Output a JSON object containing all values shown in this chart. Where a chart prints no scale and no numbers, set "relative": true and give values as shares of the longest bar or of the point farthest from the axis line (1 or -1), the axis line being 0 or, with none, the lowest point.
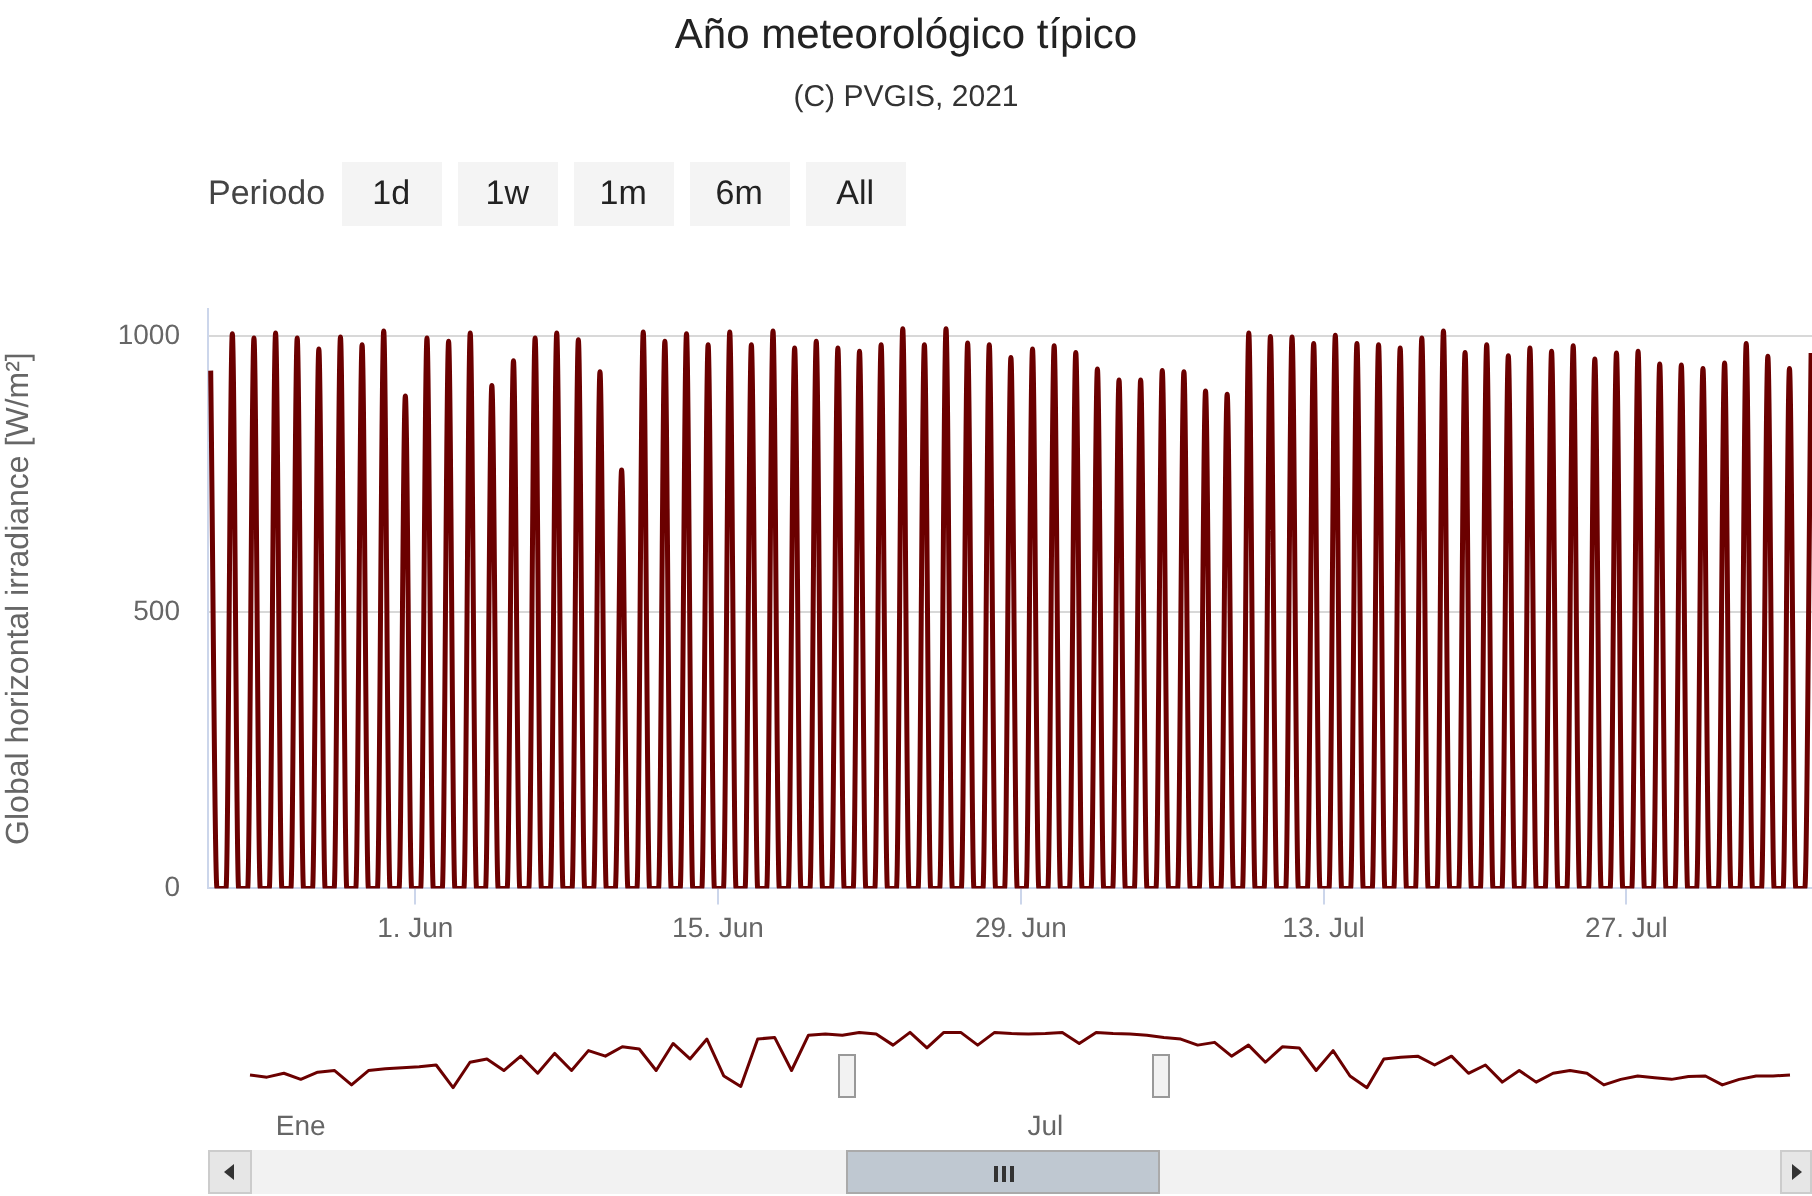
{
  "chart_data": [
    {
      "type": "line",
      "title": "Año meteorológico típico",
      "subtitle": "(C) PVGIS, 2021",
      "ylabel": "Global horizontal irradiance [W/m²]",
      "annotations": [
        "Periodo",
        "1d",
        "1w",
        "1m",
        "6m",
        "All"
      ],
      "color": "#6b0000",
      "grid": "y",
      "xlim": [
        "--05-22T10:00",
        "--08-04T14:00"
      ],
      "ylim": [
        0,
        1050
      ],
      "yticks": [
        0,
        500,
        1000
      ],
      "xticks": [
        {
          "value": "--06-01",
          "label": "1. Jun"
        },
        {
          "value": "--06-15",
          "label": "15. Jun"
        },
        {
          "value": "--06-29",
          "label": "29. Jun"
        },
        {
          "value": "--07-13",
          "label": "13. Jul"
        },
        {
          "value": "--07-27",
          "label": "27. Jul"
        }
      ],
      "x": [
        "--05-22T13:00",
        "--05-22T20:00",
        "--05-23T06:00",
        "--05-23T13:00",
        "--05-23T20:00",
        "--05-24T06:00",
        "--05-24T13:00",
        "--05-24T20:00",
        "--05-25T06:00",
        "--05-25T13:00",
        "--05-25T20:00",
        "--05-26T06:00",
        "--05-26T13:00",
        "--05-26T20:00",
        "--05-27T06:00",
        "--05-27T13:00",
        "--05-27T20:00",
        "--05-28T06:00",
        "--05-28T13:00",
        "--05-28T20:00",
        "--05-29T06:00",
        "--05-29T13:00",
        "--05-29T20:00",
        "--05-30T06:00",
        "--05-30T13:00",
        "--05-30T20:00",
        "--05-31T06:00",
        "--05-31T13:00",
        "--05-31T20:00",
        "--06-01T06:00",
        "--06-01T13:00",
        "--06-01T20:00",
        "--06-02T06:00",
        "--06-02T13:00",
        "--06-02T20:00",
        "--06-03T06:00",
        "--06-03T13:00",
        "--06-03T20:00",
        "--06-04T06:00",
        "--06-04T13:00",
        "--06-04T20:00",
        "--06-05T06:00",
        "--06-05T13:00",
        "--06-05T20:00",
        "--06-06T06:00",
        "--06-06T13:00",
        "--06-06T20:00",
        "--06-07T06:00",
        "--06-07T13:00",
        "--06-07T20:00",
        "--06-08T06:00",
        "--06-08T13:00",
        "--06-08T20:00",
        "--06-09T06:00",
        "--06-09T13:00",
        "--06-09T20:00",
        "--06-10T06:00",
        "--06-10T13:00",
        "--06-10T20:00",
        "--06-11T06:00",
        "--06-11T13:00",
        "--06-11T20:00",
        "--06-12T06:00",
        "--06-12T13:00",
        "--06-12T20:00",
        "--06-13T06:00",
        "--06-13T13:00",
        "--06-13T20:00",
        "--06-14T06:00",
        "--06-14T13:00",
        "--06-14T20:00",
        "--06-15T06:00",
        "--06-15T13:00",
        "--06-15T20:00",
        "--06-16T06:00",
        "--06-16T13:00",
        "--06-16T20:00",
        "--06-17T06:00",
        "--06-17T13:00",
        "--06-17T20:00",
        "--06-18T06:00",
        "--06-18T13:00",
        "--06-18T20:00",
        "--06-19T06:00",
        "--06-19T13:00",
        "--06-19T20:00",
        "--06-20T06:00",
        "--06-20T13:00",
        "--06-20T20:00",
        "--06-21T06:00",
        "--06-21T13:00",
        "--06-21T20:00",
        "--06-22T06:00",
        "--06-22T13:00",
        "--06-22T20:00",
        "--06-23T06:00",
        "--06-23T13:00",
        "--06-23T20:00",
        "--06-24T06:00",
        "--06-24T13:00",
        "--06-24T20:00",
        "--06-25T06:00",
        "--06-25T13:00",
        "--06-25T20:00",
        "--06-26T06:00",
        "--06-26T13:00",
        "--06-26T20:00",
        "--06-27T06:00",
        "--06-27T13:00",
        "--06-27T20:00",
        "--06-28T06:00",
        "--06-28T13:00",
        "--06-28T20:00",
        "--06-29T06:00",
        "--06-29T13:00",
        "--06-29T20:00",
        "--06-30T06:00",
        "--06-30T13:00",
        "--06-30T20:00",
        "--07-01T06:00",
        "--07-01T13:00",
        "--07-01T20:00",
        "--07-02T06:00",
        "--07-02T13:00",
        "--07-02T20:00",
        "--07-03T06:00",
        "--07-03T13:00",
        "--07-03T20:00",
        "--07-04T06:00",
        "--07-04T13:00",
        "--07-04T20:00",
        "--07-05T06:00",
        "--07-05T13:00",
        "--07-05T20:00",
        "--07-06T06:00",
        "--07-06T13:00",
        "--07-06T20:00",
        "--07-07T06:00",
        "--07-07T13:00",
        "--07-07T20:00",
        "--07-08T06:00",
        "--07-08T13:00",
        "--07-08T20:00",
        "--07-09T06:00",
        "--07-09T13:00",
        "--07-09T20:00",
        "--07-10T06:00",
        "--07-10T13:00",
        "--07-10T20:00",
        "--07-11T06:00",
        "--07-11T13:00",
        "--07-11T20:00",
        "--07-12T06:00",
        "--07-12T13:00",
        "--07-12T20:00",
        "--07-13T06:00",
        "--07-13T13:00",
        "--07-13T20:00",
        "--07-14T06:00",
        "--07-14T13:00",
        "--07-14T20:00",
        "--07-15T06:00",
        "--07-15T13:00",
        "--07-15T20:00",
        "--07-16T06:00",
        "--07-16T13:00",
        "--07-16T20:00",
        "--07-17T06:00",
        "--07-17T13:00",
        "--07-17T20:00",
        "--07-18T06:00",
        "--07-18T13:00",
        "--07-18T20:00",
        "--07-19T06:00",
        "--07-19T13:00",
        "--07-19T20:00",
        "--07-20T06:00",
        "--07-20T13:00",
        "--07-20T20:00",
        "--07-21T06:00",
        "--07-21T13:00",
        "--07-21T20:00",
        "--07-22T06:00",
        "--07-22T13:00",
        "--07-22T20:00",
        "--07-23T06:00",
        "--07-23T13:00",
        "--07-23T20:00",
        "--07-24T06:00",
        "--07-24T13:00",
        "--07-24T20:00",
        "--07-25T06:00",
        "--07-25T13:00",
        "--07-25T20:00",
        "--07-26T06:00",
        "--07-26T13:00",
        "--07-26T20:00",
        "--07-27T06:00",
        "--07-27T13:00",
        "--07-27T20:00",
        "--07-28T06:00",
        "--07-28T13:00",
        "--07-28T20:00",
        "--07-29T06:00",
        "--07-29T13:00",
        "--07-29T20:00",
        "--07-30T06:00",
        "--07-30T13:00",
        "--07-30T20:00",
        "--07-31T06:00",
        "--07-31T13:00",
        "--07-31T20:00",
        "--08-01T06:00",
        "--08-01T13:00",
        "--08-01T20:00",
        "--08-02T06:00",
        "--08-02T13:00",
        "--08-02T20:00",
        "--08-03T06:00",
        "--08-03T13:00",
        "--08-03T20:00",
        "--08-04T06:00",
        "--08-04T13:00"
      ],
      "values": [
        938,
        0,
        0,
        1005,
        0,
        0,
        997,
        0,
        0,
        1006,
        0,
        0,
        997,
        0,
        0,
        977,
        0,
        0,
        999,
        0,
        0,
        985,
        0,
        0,
        1010,
        0,
        0,
        892,
        0,
        0,
        997,
        0,
        0,
        991,
        0,
        0,
        1006,
        0,
        0,
        911,
        0,
        0,
        956,
        0,
        0,
        997,
        0,
        0,
        1006,
        0,
        0,
        994,
        0,
        0,
        936,
        0,
        0,
        758,
        0,
        0,
        1008,
        0,
        0,
        991,
        0,
        0,
        1005,
        0,
        0,
        985,
        0,
        0,
        1008,
        0,
        0,
        985,
        0,
        0,
        1010,
        0,
        0,
        979,
        0,
        0,
        991,
        0,
        0,
        979,
        0,
        0,
        973,
        0,
        0,
        985,
        0,
        0,
        1014,
        0,
        0,
        985,
        0,
        0,
        1014,
        0,
        0,
        988,
        0,
        0,
        985,
        0,
        0,
        962,
        0,
        0,
        977,
        0,
        0,
        983,
        0,
        0,
        971,
        0,
        0,
        941,
        0,
        0,
        921,
        0,
        0,
        921,
        0,
        0,
        938,
        0,
        0,
        936,
        0,
        0,
        901,
        0,
        0,
        895,
        0,
        0,
        1006,
        0,
        0,
        1000,
        0,
        0,
        999,
        0,
        0,
        987,
        0,
        0,
        1002,
        0,
        0,
        987,
        0,
        0,
        985,
        0,
        0,
        979,
        0,
        0,
        997,
        0,
        0,
        1010,
        0,
        0,
        971,
        0,
        0,
        985,
        0,
        0,
        965,
        0,
        0,
        979,
        0,
        0,
        973,
        0,
        0,
        983,
        0,
        0,
        959,
        0,
        0,
        970,
        0,
        0,
        973,
        0,
        0,
        950,
        0,
        0,
        948,
        0,
        0,
        942,
        0,
        0,
        952,
        0,
        0,
        987,
        0,
        0,
        964,
        0,
        0,
        942,
        0,
        0,
        970
      ]
    },
    {
      "type": "line",
      "relative": true,
      "color": "#6b0000",
      "categories": [
        null,
        null,
        null,
        "Ene",
        null,
        null,
        null,
        null,
        null,
        null,
        null,
        null,
        null,
        null,
        null,
        null,
        null,
        null,
        null,
        null,
        null,
        null,
        null,
        null,
        null,
        null,
        null,
        null,
        null,
        null,
        null,
        null,
        null,
        null,
        null,
        null,
        null,
        null,
        null,
        null,
        null,
        null,
        null,
        null,
        null,
        null,
        null,
        "Jul",
        null,
        null,
        null,
        null,
        null,
        null,
        null,
        null,
        null,
        null,
        null,
        null,
        null,
        null,
        null,
        null,
        null,
        null,
        null,
        null,
        null,
        null,
        null,
        null,
        null,
        null,
        null,
        null,
        null,
        null,
        null,
        null,
        null,
        null,
        null,
        null,
        null,
        null,
        null,
        null,
        null,
        null,
        null,
        null
      ],
      "values": [
        0.23,
        0.19,
        0.26,
        0.15,
        0.28,
        0.31,
        0.05,
        0.31,
        0.34,
        0.36,
        0.38,
        0.41,
        0,
        0.46,
        0.52,
        0.31,
        0.57,
        0.26,
        0.62,
        0.31,
        0.67,
        0.57,
        0.74,
        0.7,
        0.31,
        0.8,
        0.52,
        0.88,
        0.21,
        0.02,
        0.88,
        0.91,
        0.31,
        0.95,
        0.97,
        0.95,
        1,
        0.97,
        0.77,
        1,
        0.72,
        1,
        1,
        0.77,
        1,
        0.98,
        0.97,
        0.98,
        1,
        0.8,
        1,
        0.98,
        0.97,
        0.95,
        0.91,
        0.88,
        0.77,
        0.82,
        0.57,
        0.77,
        0.46,
        0.74,
        0.72,
        0.31,
        0.67,
        0.21,
        0,
        0.52,
        0.55,
        0.57,
        0.41,
        0.57,
        0.26,
        0.41,
        0.1,
        0.31,
        0.1,
        0.26,
        0.31,
        0.26,
        0.05,
        0.15,
        0.21,
        0.18,
        0.15,
        0.2,
        0.21,
        0.05,
        0.15,
        0.21,
        0.21,
        0.23
      ]
    }
  ]
}
